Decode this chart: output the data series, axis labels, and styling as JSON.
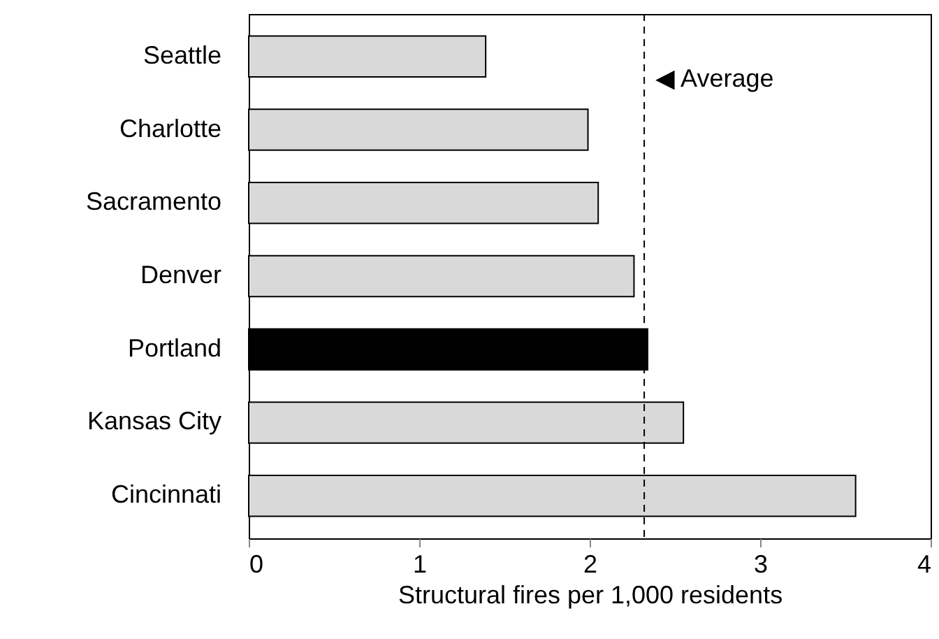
{
  "chart_data": {
    "type": "bar",
    "orientation": "horizontal",
    "categories": [
      "Seattle",
      "Charlotte",
      "Sacramento",
      "Denver",
      "Portland",
      "Kansas City",
      "Cincinnati"
    ],
    "values": [
      1.39,
      1.99,
      2.05,
      2.26,
      2.34,
      2.55,
      3.56
    ],
    "colors": [
      "#d9d9d9",
      "#d9d9d9",
      "#d9d9d9",
      "#d9d9d9",
      "#000000",
      "#d9d9d9",
      "#d9d9d9"
    ],
    "xlabel": "Structural fires per 1,000 residents",
    "xlim": [
      0,
      4
    ],
    "xticks": [
      0,
      1,
      2,
      3,
      4
    ],
    "ref_lines": [
      {
        "axis": "x",
        "value": 2.32,
        "label": "◀ Average",
        "color": "#000000",
        "line_style": "dashed"
      }
    ],
    "grid": false
  }
}
